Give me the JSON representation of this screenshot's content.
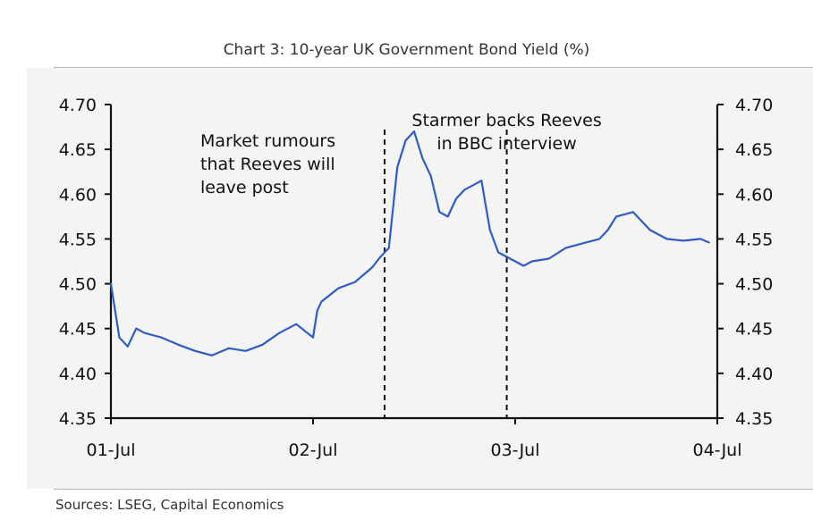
{
  "header": {
    "title": "Chart 3: 10-year UK Government Bond Yield (%)"
  },
  "footer": {
    "source": "Sources: LSEG, Capital Economics"
  },
  "colors": {
    "line": "#2f5bc9",
    "axis": "#111111",
    "panel_background": "#f4f4f4",
    "rule": "#b9b9b9"
  },
  "chart_data": {
    "type": "line",
    "title": "Chart 3: 10-year UK Government Bond Yield (%)",
    "xlabel": "",
    "ylabel": "",
    "x_tick_labels": [
      "01-Jul",
      "02-Jul",
      "03-Jul",
      "04-Jul"
    ],
    "xlim": [
      "01-Jul 00:00",
      "04-Jul 00:00"
    ],
    "y_ticks": [
      4.35,
      4.4,
      4.45,
      4.5,
      4.55,
      4.6,
      4.65,
      4.7
    ],
    "y_tick_labels": [
      "4.35",
      "4.40",
      "4.45",
      "4.50",
      "4.55",
      "4.60",
      "4.65",
      "4.70"
    ],
    "ylim": [
      4.35,
      4.7
    ],
    "right_axis_mirror": true,
    "grid": false,
    "legend": "none",
    "series": [
      {
        "x": [
          "01-Jul 00:00",
          "01-Jul 01:00",
          "01-Jul 02:00",
          "01-Jul 03:00",
          "01-Jul 04:00",
          "01-Jul 06:00",
          "01-Jul 08:00",
          "01-Jul 10:00",
          "01-Jul 12:00",
          "01-Jul 14:00",
          "01-Jul 16:00",
          "01-Jul 18:00",
          "01-Jul 20:00",
          "01-Jul 22:00",
          "02-Jul 00:00",
          "02-Jul 00:30",
          "02-Jul 01:00",
          "02-Jul 03:00",
          "02-Jul 05:00",
          "02-Jul 06:00",
          "02-Jul 07:00",
          "02-Jul 08:00",
          "02-Jul 09:00",
          "02-Jul 10:00",
          "02-Jul 11:00",
          "02-Jul 12:00",
          "02-Jul 13:00",
          "02-Jul 14:00",
          "02-Jul 15:00",
          "02-Jul 16:00",
          "02-Jul 17:00",
          "02-Jul 18:00",
          "02-Jul 19:00",
          "02-Jul 20:00",
          "02-Jul 21:00",
          "02-Jul 22:00",
          "02-Jul 23:00",
          "03-Jul 00:00",
          "03-Jul 01:00",
          "03-Jul 02:00",
          "03-Jul 04:00",
          "03-Jul 06:00",
          "03-Jul 08:00",
          "03-Jul 10:00",
          "03-Jul 11:00",
          "03-Jul 12:00",
          "03-Jul 14:00",
          "03-Jul 15:00",
          "03-Jul 16:00",
          "03-Jul 18:00",
          "03-Jul 20:00",
          "03-Jul 22:00",
          "03-Jul 23:00"
        ],
        "values": [
          4.5,
          4.44,
          4.43,
          4.45,
          4.445,
          4.44,
          4.432,
          4.425,
          4.42,
          4.428,
          4.425,
          4.432,
          4.445,
          4.455,
          4.44,
          4.47,
          4.48,
          4.495,
          4.502,
          4.51,
          4.518,
          4.53,
          4.54,
          4.63,
          4.66,
          4.67,
          4.64,
          4.62,
          4.58,
          4.575,
          4.595,
          4.605,
          4.61,
          4.615,
          4.56,
          4.535,
          4.53,
          4.525,
          4.52,
          4.525,
          4.528,
          4.54,
          4.545,
          4.55,
          4.56,
          4.575,
          4.58,
          4.57,
          4.56,
          4.55,
          4.548,
          4.55,
          4.546
        ]
      }
    ],
    "annotations": [
      {
        "x": "02-Jul 08:30",
        "style": "dashed-vertical",
        "label_lines": [
          "Market rumours",
          "that Reeves will",
          "leave post"
        ]
      },
      {
        "x": "02-Jul 23:00",
        "style": "dashed-vertical",
        "label_lines": [
          "Starmer backs Reeves",
          "in BBC interview"
        ]
      }
    ]
  }
}
